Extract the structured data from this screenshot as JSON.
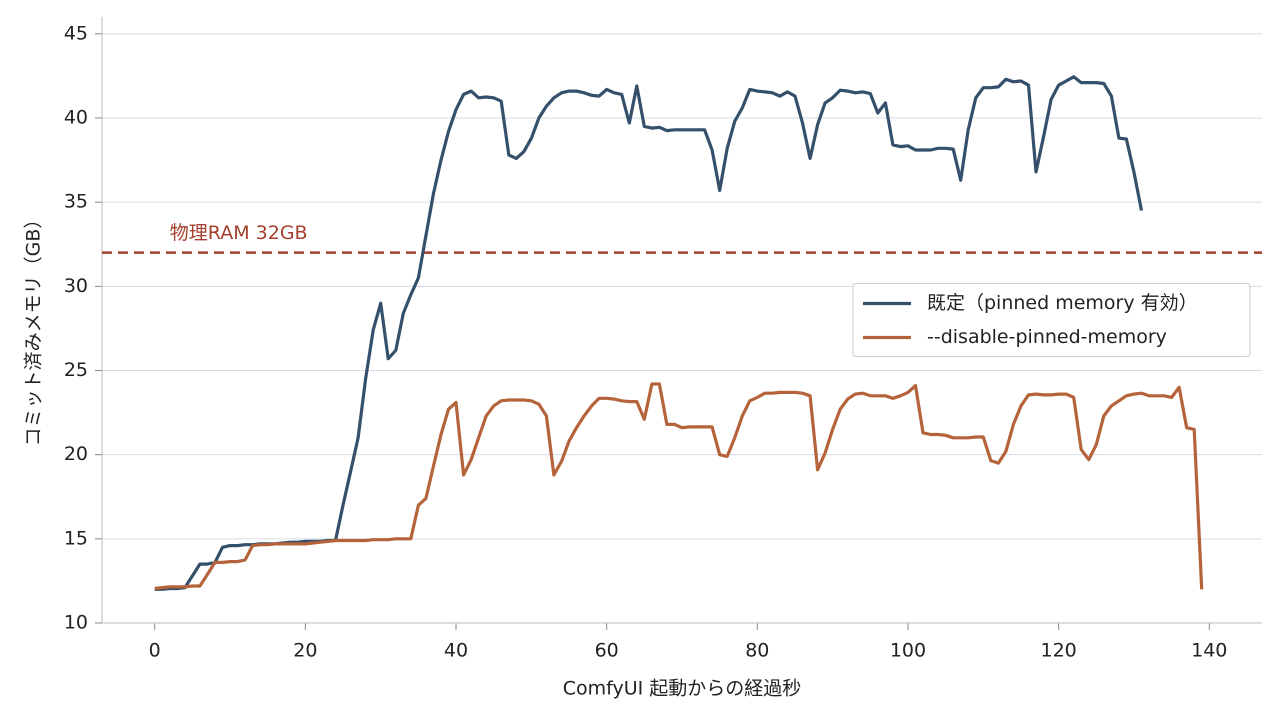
{
  "chart_data": {
    "type": "line",
    "xlabel": "ComfyUI 起動からの経過秒",
    "ylabel": "コミット済みメモリ（GB）",
    "x": [
      0,
      1,
      2,
      3,
      4,
      5,
      6,
      7,
      8,
      9,
      10,
      11,
      12,
      13,
      14,
      15,
      16,
      17,
      18,
      19,
      20,
      21,
      22,
      23,
      24,
      25,
      26,
      27,
      28,
      29,
      30,
      31,
      32,
      33,
      34,
      35,
      36,
      37,
      38,
      39,
      40,
      41,
      42,
      43,
      44,
      45,
      46,
      47,
      48,
      49,
      50,
      51,
      52,
      53,
      54,
      55,
      56,
      57,
      58,
      59,
      60,
      61,
      62,
      63,
      64,
      65,
      66,
      67,
      68,
      69,
      70,
      71,
      72,
      73,
      74,
      75,
      76,
      77,
      78,
      79,
      80,
      81,
      82,
      83,
      84,
      85,
      86,
      87,
      88,
      89,
      90,
      91,
      92,
      93,
      94,
      95,
      96,
      97,
      98,
      99,
      100,
      101,
      102,
      103,
      104,
      105,
      106,
      107,
      108,
      109,
      110,
      111,
      112,
      113,
      114,
      115,
      116,
      117,
      118,
      119,
      120,
      121,
      122,
      123,
      124,
      125,
      126,
      127,
      128,
      129,
      130,
      131,
      132,
      133,
      134,
      135,
      136,
      137,
      138,
      139
    ],
    "series": [
      {
        "name": "既定（pinned memory 有効）",
        "color": "#34506b",
        "values": [
          12.0,
          12.0,
          12.05,
          12.05,
          12.1,
          12.8,
          13.5,
          13.5,
          13.6,
          14.5,
          14.6,
          14.6,
          14.65,
          14.65,
          14.7,
          14.7,
          14.7,
          14.75,
          14.8,
          14.8,
          14.85,
          14.85,
          14.85,
          14.9,
          14.9,
          17.0,
          19.0,
          21.0,
          24.5,
          27.4,
          29.0,
          25.7,
          26.2,
          28.4,
          29.5,
          30.5,
          33.0,
          35.5,
          37.5,
          39.2,
          40.5,
          41.4,
          41.6,
          41.2,
          41.25,
          41.2,
          41.0,
          37.8,
          37.6,
          38.0,
          38.8,
          40.0,
          40.7,
          41.2,
          41.5,
          41.6,
          41.6,
          41.5,
          41.35,
          41.3,
          41.7,
          41.5,
          41.4,
          39.7,
          41.9,
          39.5,
          39.4,
          39.45,
          39.25,
          39.3,
          39.3,
          39.3,
          39.3,
          39.3,
          38.1,
          35.7,
          38.2,
          39.8,
          40.6,
          41.7,
          41.6,
          41.55,
          41.5,
          41.3,
          41.55,
          41.3,
          39.7,
          37.6,
          39.6,
          40.9,
          41.2,
          41.65,
          41.6,
          41.5,
          41.55,
          41.45,
          40.3,
          40.9,
          38.4,
          38.3,
          38.35,
          38.1,
          38.1,
          38.1,
          38.2,
          38.2,
          38.15,
          36.3,
          39.3,
          41.2,
          41.8,
          41.8,
          41.85,
          42.3,
          42.15,
          42.2,
          41.95,
          36.8,
          38.9,
          41.1,
          41.95,
          42.2,
          42.45,
          42.1,
          42.1,
          42.1,
          42.05,
          41.3,
          38.8,
          38.75,
          36.8,
          34.5,
          null,
          null,
          null,
          null,
          null,
          null,
          null,
          null
        ]
      },
      {
        "name": "--disable-pinned-memory",
        "color": "#b5633a",
        "values": [
          12.05,
          12.1,
          12.15,
          12.15,
          12.15,
          12.2,
          12.2,
          12.9,
          13.6,
          13.6,
          13.65,
          13.65,
          13.75,
          14.6,
          14.65,
          14.65,
          14.7,
          14.7,
          14.7,
          14.7,
          14.7,
          14.75,
          14.8,
          14.85,
          14.9,
          14.9,
          14.9,
          14.9,
          14.9,
          14.95,
          14.95,
          14.95,
          15.0,
          15.0,
          15.0,
          17.0,
          17.4,
          19.3,
          21.2,
          22.7,
          23.1,
          18.8,
          19.7,
          21.0,
          22.3,
          22.9,
          23.2,
          23.25,
          23.25,
          23.25,
          23.2,
          23.0,
          22.3,
          18.8,
          19.6,
          20.8,
          21.6,
          22.3,
          22.9,
          23.35,
          23.35,
          23.3,
          23.2,
          23.15,
          23.15,
          22.1,
          24.2,
          24.2,
          21.8,
          21.8,
          21.6,
          21.65,
          21.65,
          21.65,
          21.65,
          20.0,
          19.9,
          21.0,
          22.3,
          23.2,
          23.4,
          23.65,
          23.65,
          23.7,
          23.7,
          23.7,
          23.65,
          23.5,
          19.1,
          20.1,
          21.5,
          22.7,
          23.3,
          23.6,
          23.65,
          23.5,
          23.5,
          23.5,
          23.35,
          23.5,
          23.7,
          24.1,
          21.3,
          21.2,
          21.2,
          21.15,
          21.0,
          21.0,
          21.0,
          21.05,
          21.05,
          19.65,
          19.5,
          20.2,
          21.8,
          22.9,
          23.55,
          23.6,
          23.55,
          23.55,
          23.6,
          23.6,
          23.4,
          20.3,
          19.7,
          20.6,
          22.3,
          22.9,
          23.2,
          23.5,
          23.6,
          23.65,
          23.5,
          23.5,
          23.5,
          23.4,
          24.0,
          21.6,
          21.5,
          12.0
        ]
      }
    ],
    "hline": {
      "value": 32,
      "label": "物理RAM 32GB",
      "color": "#a5402f"
    },
    "xlim": [
      -7,
      147
    ],
    "ylim": [
      10,
      46
    ],
    "xticks": [
      0,
      20,
      40,
      60,
      80,
      100,
      120,
      140
    ],
    "yticks": [
      10,
      15,
      20,
      25,
      30,
      35,
      40,
      45
    ],
    "grid": true,
    "legend": "center right"
  }
}
